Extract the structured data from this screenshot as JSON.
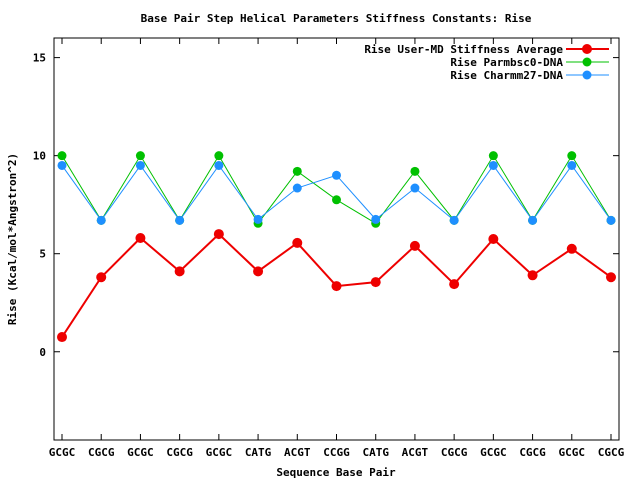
{
  "chart_data": {
    "type": "line",
    "title": "Base Pair Step Helical Parameters Stiffness Constants: Rise",
    "xlabel": "Sequence Base Pair",
    "ylabel": "Rise (Kcal/mol*Angstron^2)",
    "categories": [
      "GCGC",
      "CGCG",
      "GCGC",
      "CGCG",
      "GCGC",
      "CATG",
      "ACGT",
      "CCGG",
      "CATG",
      "ACGT",
      "CGCG",
      "GCGC",
      "CGCG",
      "GCGC",
      "CGCG"
    ],
    "ylim": [
      -4.5,
      16
    ],
    "yticks": [
      0,
      5,
      10,
      15
    ],
    "grid": false,
    "legend_position": "top-right",
    "series": [
      {
        "name": "Rise User-MD Stiffness Average",
        "color": "#ee0000",
        "values": [
          0.75,
          3.8,
          5.8,
          4.1,
          6.0,
          4.1,
          5.55,
          3.35,
          3.55,
          5.4,
          3.45,
          5.75,
          3.9,
          5.25,
          3.8
        ]
      },
      {
        "name": "Rise Parmbsc0-DNA",
        "color": "#00c000",
        "values": [
          10.0,
          6.7,
          10.0,
          6.7,
          10.0,
          6.55,
          9.2,
          7.75,
          6.55,
          9.2,
          6.7,
          10.0,
          6.7,
          10.0,
          6.7
        ]
      },
      {
        "name": "Rise Charmm27-DNA",
        "color": "#1e8fff",
        "values": [
          9.5,
          6.7,
          9.5,
          6.7,
          9.5,
          6.75,
          8.35,
          9.0,
          6.75,
          8.35,
          6.7,
          9.5,
          6.7,
          9.5,
          6.7
        ]
      }
    ]
  }
}
